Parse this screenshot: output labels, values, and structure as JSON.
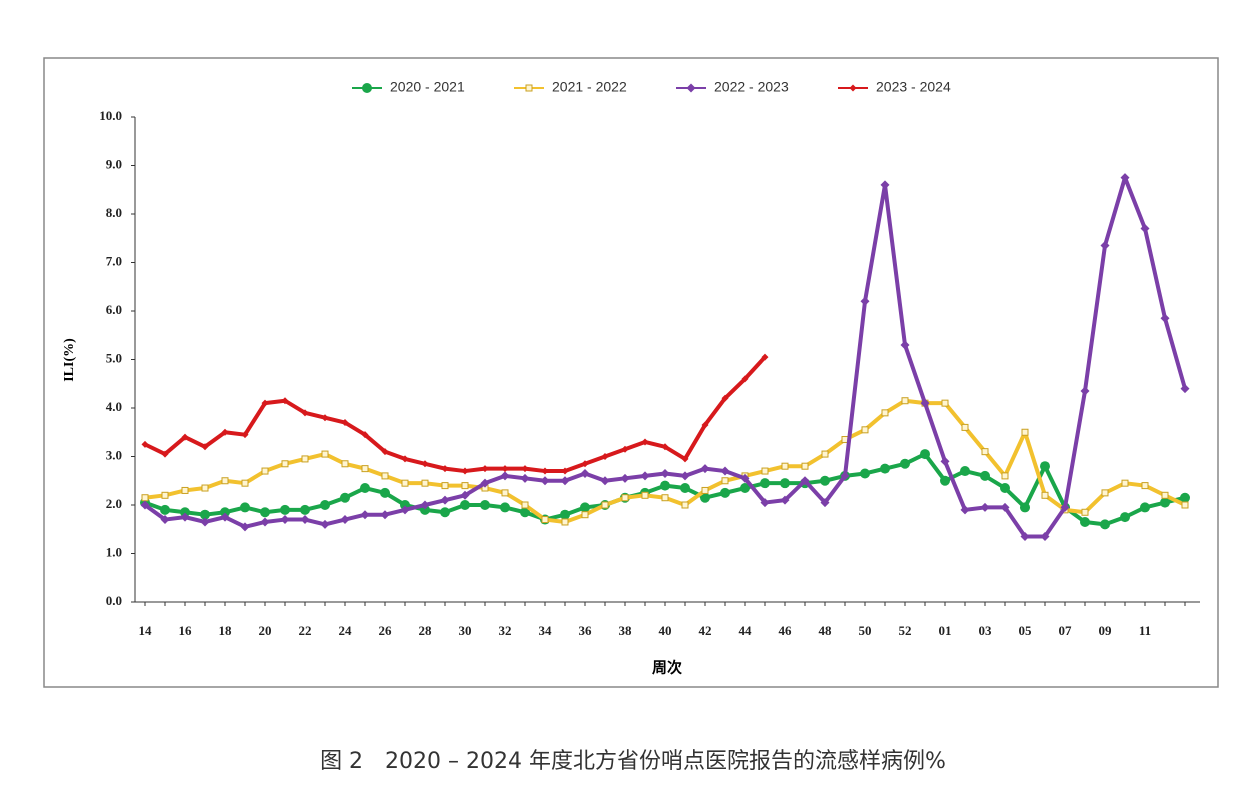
{
  "chart_data": {
    "type": "line",
    "ylabel": "ILI(%)",
    "xlabel": "周次",
    "caption": "图 2　2020 – 2024 年度北方省份哨点医院报告的流感样病例%",
    "categories": [
      "14",
      null,
      "16",
      null,
      "18",
      null,
      "20",
      null,
      "22",
      null,
      "24",
      null,
      "26",
      null,
      "28",
      null,
      "30",
      null,
      "32",
      null,
      "34",
      null,
      "36",
      null,
      "38",
      null,
      "40",
      null,
      "42",
      null,
      "44",
      null,
      "46",
      null,
      "48",
      null,
      "50",
      null,
      "52",
      null,
      "01",
      null,
      "03",
      null,
      "05",
      null,
      "07",
      null,
      "09",
      null,
      "11",
      null,
      null
    ],
    "ylim": [
      0,
      10
    ],
    "yticks": [
      {
        "value": 0,
        "label": "0.0"
      },
      {
        "value": 1,
        "label": "1.0"
      },
      {
        "value": 2,
        "label": "2.0"
      },
      {
        "value": 3,
        "label": "3.0"
      },
      {
        "value": 4,
        "label": "4.0"
      },
      {
        "value": 5,
        "label": "5.0"
      },
      {
        "value": 6,
        "label": "6.0"
      },
      {
        "value": 7,
        "label": "7.0"
      },
      {
        "value": 8,
        "label": "8.0"
      },
      {
        "value": 9,
        "label": "9.0"
      },
      {
        "value": 10,
        "label": "10.0"
      }
    ],
    "legend": "top",
    "series": [
      {
        "name": "2020 - 2021",
        "color": "#1aa64a",
        "marker": "circle",
        "values": [
          2.05,
          1.9,
          1.85,
          1.8,
          1.85,
          1.95,
          1.85,
          1.9,
          1.9,
          2.0,
          2.15,
          2.35,
          2.25,
          2.0,
          1.9,
          1.85,
          2.0,
          2.0,
          1.95,
          1.85,
          1.7,
          1.8,
          1.95,
          2.0,
          2.15,
          2.25,
          2.4,
          2.35,
          2.15,
          2.25,
          2.35,
          2.45,
          2.45,
          2.45,
          2.5,
          2.6,
          2.65,
          2.75,
          2.85,
          3.05,
          2.5,
          2.7,
          2.6,
          2.35,
          1.95,
          2.8,
          1.95,
          1.65,
          1.6,
          1.75,
          1.95,
          2.05,
          2.15
        ]
      },
      {
        "name": "2021 - 2022",
        "color": "#f2c12e",
        "marker": "square",
        "values": [
          2.15,
          2.2,
          2.3,
          2.35,
          2.5,
          2.45,
          2.7,
          2.85,
          2.95,
          3.05,
          2.85,
          2.75,
          2.6,
          2.45,
          2.45,
          2.4,
          2.4,
          2.35,
          2.25,
          2.0,
          1.7,
          1.65,
          1.8,
          2.0,
          2.15,
          2.2,
          2.15,
          2.0,
          2.3,
          2.5,
          2.6,
          2.7,
          2.8,
          2.8,
          3.05,
          3.35,
          3.55,
          3.9,
          4.15,
          4.1,
          4.1,
          3.6,
          3.1,
          2.6,
          3.5,
          2.2,
          1.9,
          1.85,
          2.25,
          2.45,
          2.4,
          2.2,
          2.0
        ]
      },
      {
        "name": "2022 - 2023",
        "color": "#7b3fa8",
        "marker": "diamond",
        "values": [
          2.0,
          1.7,
          1.75,
          1.65,
          1.75,
          1.55,
          1.65,
          1.7,
          1.7,
          1.6,
          1.7,
          1.8,
          1.8,
          1.9,
          2.0,
          2.1,
          2.2,
          2.45,
          2.6,
          2.55,
          2.5,
          2.5,
          2.65,
          2.5,
          2.55,
          2.6,
          2.65,
          2.6,
          2.75,
          2.7,
          2.55,
          2.05,
          2.1,
          2.5,
          2.05,
          2.6,
          6.2,
          8.6,
          5.3,
          4.1,
          2.9,
          1.9,
          1.95,
          1.95,
          1.35,
          1.35,
          1.95,
          4.35,
          7.35,
          8.75,
          7.7,
          5.85,
          4.4
        ]
      },
      {
        "name": "2023 - 2024",
        "color": "#d7191c",
        "marker": "smalldiamond",
        "values": [
          3.25,
          3.05,
          3.4,
          3.2,
          3.5,
          3.45,
          4.1,
          4.15,
          3.9,
          3.8,
          3.7,
          3.45,
          3.1,
          2.95,
          2.85,
          2.75,
          2.7,
          2.75,
          2.75,
          2.75,
          2.7,
          2.7,
          2.85,
          3.0,
          3.15,
          3.3,
          3.2,
          2.95,
          3.65,
          4.2,
          4.6,
          5.05,
          null,
          null,
          null,
          null,
          null,
          null,
          null,
          null,
          null,
          null,
          null,
          null,
          null,
          null,
          null,
          null,
          null,
          null,
          null,
          null,
          null
        ]
      }
    ]
  }
}
